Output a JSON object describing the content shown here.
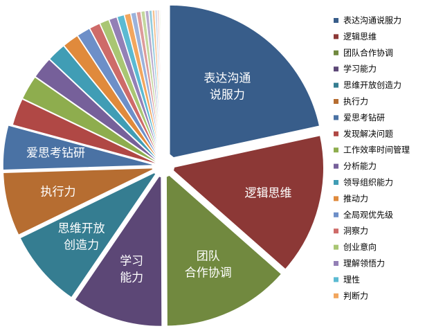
{
  "chart_data": {
    "type": "pie",
    "title": "",
    "legend_position": "right",
    "slices": [
      {
        "name": "表达沟通说服力",
        "value": 22.5,
        "color": "#385D8A",
        "label_lines": [
          "表达沟通",
          "说服力"
        ]
      },
      {
        "name": "逻辑思维",
        "value": 15.5,
        "color": "#8C3836",
        "label_lines": [
          "逻辑思维"
        ]
      },
      {
        "name": "团队合作协调",
        "value": 14.0,
        "color": "#71893F",
        "label_lines": [
          "团队",
          "合作协调"
        ]
      },
      {
        "name": "学习能力",
        "value": 10.0,
        "color": "#5C4776",
        "label_lines": [
          "学习",
          "能力"
        ]
      },
      {
        "name": "思维开放创造力",
        "value": 8.6,
        "color": "#357D91",
        "label_lines": [
          "思维开放",
          "创造力"
        ]
      },
      {
        "name": "执行力",
        "value": 7.0,
        "color": "#B66D31",
        "label_lines": [
          "执行力"
        ]
      },
      {
        "name": "爱思考钻研",
        "value": 4.9,
        "color": "#4A72A4",
        "label_lines": [
          "爱思考钻研"
        ]
      },
      {
        "name": "发现解决问题",
        "value": 3.0,
        "color": "#B04845",
        "label_lines": []
      },
      {
        "name": "工作效率时间管理",
        "value": 2.7,
        "color": "#8EAD4E",
        "label_lines": []
      },
      {
        "name": "分析能力",
        "value": 2.4,
        "color": "#76609A",
        "label_lines": []
      },
      {
        "name": "领导组织能力",
        "value": 2.1,
        "color": "#409DB5",
        "label_lines": []
      },
      {
        "name": "推动力",
        "value": 1.8,
        "color": "#E08A3C",
        "label_lines": []
      },
      {
        "name": "全局观优先级",
        "value": 1.5,
        "color": "#6D8FC8",
        "label_lines": []
      },
      {
        "name": "洞察力",
        "value": 1.2,
        "color": "#CE6B69",
        "label_lines": []
      },
      {
        "name": "创业意向",
        "value": 1.05,
        "color": "#A9C673",
        "label_lines": []
      },
      {
        "name": "理解领悟力",
        "value": 0.9,
        "color": "#9380B6",
        "label_lines": []
      },
      {
        "name": "理性",
        "value": 0.8,
        "color": "#5BBAD2",
        "label_lines": []
      },
      {
        "name": "判断力",
        "value": 0.7,
        "color": "#F2A65E",
        "label_lines": []
      },
      {
        "name": "",
        "value": 0.6,
        "color": "#9BB2DB",
        "label_lines": []
      },
      {
        "name": "",
        "value": 0.5,
        "color": "#DD9B9A",
        "label_lines": []
      },
      {
        "name": "",
        "value": 0.45,
        "color": "#C3D79E",
        "label_lines": []
      },
      {
        "name": "",
        "value": 0.4,
        "color": "#B7A9CD",
        "label_lines": []
      },
      {
        "name": "",
        "value": 0.35,
        "color": "#93CCDD",
        "label_lines": []
      },
      {
        "name": "",
        "value": 0.3,
        "color": "#F6C191",
        "label_lines": []
      },
      {
        "name": "",
        "value": 0.25,
        "color": "#C7D2E8",
        "label_lines": []
      },
      {
        "name": "",
        "value": 0.2,
        "color": "#E8C1C0",
        "label_lines": []
      },
      {
        "name": "",
        "value": 0.15,
        "color": "#DDE8C8",
        "label_lines": []
      },
      {
        "name": "",
        "value": 0.12,
        "color": "#D8CFE5",
        "label_lines": []
      },
      {
        "name": "",
        "value": 0.1,
        "color": "#C2E2EC",
        "label_lines": []
      },
      {
        "name": "",
        "value": 0.08,
        "color": "#FADDC4",
        "label_lines": []
      }
    ],
    "legend": [
      "表达沟通说服力",
      "逻辑思维",
      "团队合作协调",
      "学习能力",
      "思维开放创造力",
      "执行力",
      "爱思考钻研",
      "发现解决问题",
      "工作效率时间管理",
      "分析能力",
      "领导组织能力",
      "推动力",
      "全局观优先级",
      "洞察力",
      "创业意向",
      "理解领悟力",
      "理性",
      "判断力"
    ]
  }
}
